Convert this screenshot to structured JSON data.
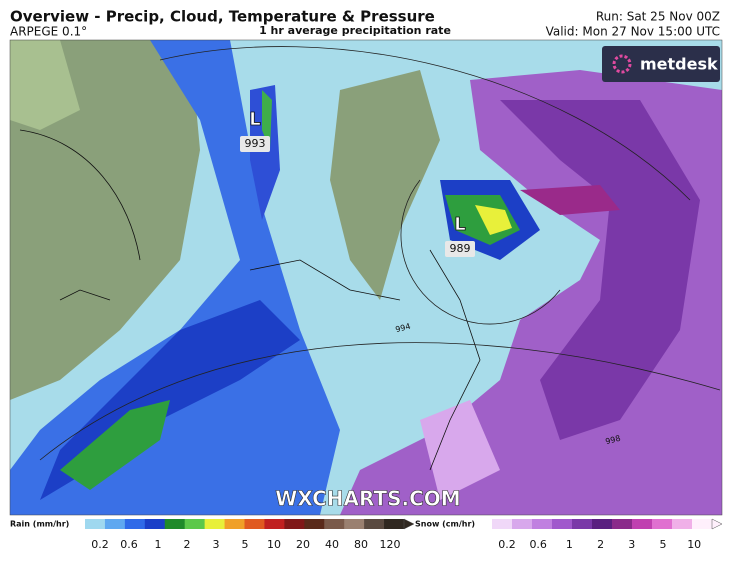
{
  "header": {
    "title": "Overview - Precip, Cloud, Temperature & Pressure",
    "model": "ARPEGE 0.1°",
    "subtitle": "1 hr average precipitation rate",
    "run": "Run: Sat 25 Nov 00Z",
    "valid": "Valid: Mon 27 Nov 15:00 UTC"
  },
  "logo": "metdesk",
  "watermark": "WXCHARTS.COM",
  "map": {
    "lows": [
      {
        "symbol": "L",
        "pressure": "993"
      },
      {
        "symbol": "L",
        "pressure": "989"
      }
    ],
    "isobar_labels": [
      "994",
      "998"
    ]
  },
  "legend": {
    "rain": {
      "label": "Rain (mm/hr)",
      "ticks": [
        "0.2",
        "0.6",
        "1",
        "2",
        "3",
        "5",
        "10",
        "20",
        "40",
        "80",
        "120"
      ],
      "colors": [
        "#9fd8ef",
        "#5fa8f0",
        "#2f6ae8",
        "#1a3fc8",
        "#1f8a2a",
        "#5cc84a",
        "#e8f03a",
        "#f0a028",
        "#e05a20",
        "#c02020",
        "#801818",
        "#5a2a1a",
        "#7a5a4a",
        "#9a8070",
        "#5a4a40",
        "#302820"
      ]
    },
    "snow": {
      "label": "Snow (cm/hr)",
      "ticks": [
        "0.2",
        "0.6",
        "1",
        "2",
        "3",
        "5",
        "10"
      ],
      "colors": [
        "#f0d8f8",
        "#d8a8ec",
        "#c080e0",
        "#a058cc",
        "#7a38a8",
        "#5a1f80",
        "#8a2a8a",
        "#c040b0",
        "#e070d0",
        "#f0b0e8",
        "#fff0fc"
      ]
    }
  }
}
